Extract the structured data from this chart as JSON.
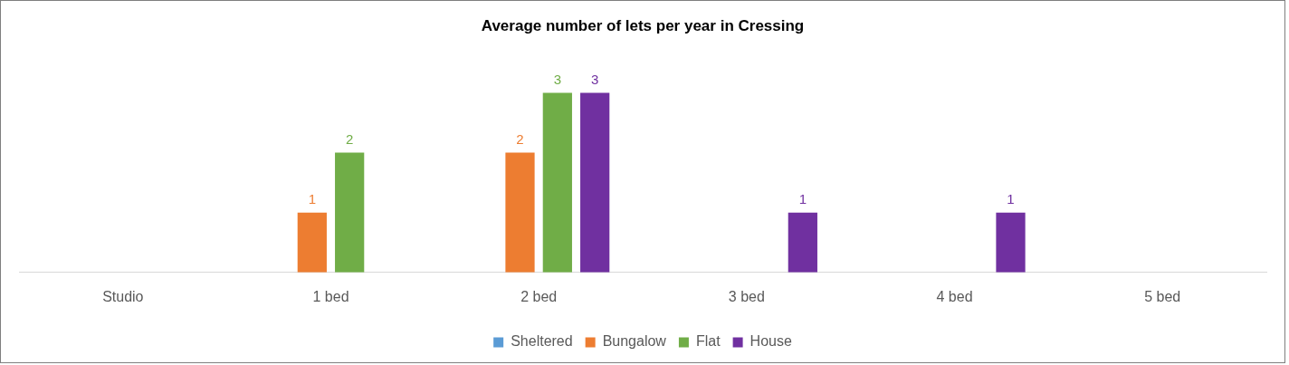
{
  "chart_data": {
    "type": "bar",
    "title": "Average number of lets per year in Cressing",
    "categories": [
      "Studio",
      "1 bed",
      "2 bed",
      "3 bed",
      "4 bed",
      "5 bed"
    ],
    "series": [
      {
        "name": "Sheltered",
        "color": "#5b9bd5",
        "values": [
          null,
          null,
          null,
          null,
          null,
          null
        ]
      },
      {
        "name": "Bungalow",
        "color": "#ed7d31",
        "values": [
          null,
          1,
          2,
          null,
          null,
          null
        ]
      },
      {
        "name": "Flat",
        "color": "#70ad47",
        "values": [
          null,
          2,
          3,
          null,
          null,
          null
        ]
      },
      {
        "name": "House",
        "color": "#7030a0",
        "values": [
          null,
          null,
          3,
          1,
          1,
          null
        ]
      }
    ],
    "tick_labels": "x",
    "grid": false,
    "legend": "bottom",
    "data_labels": true
  }
}
